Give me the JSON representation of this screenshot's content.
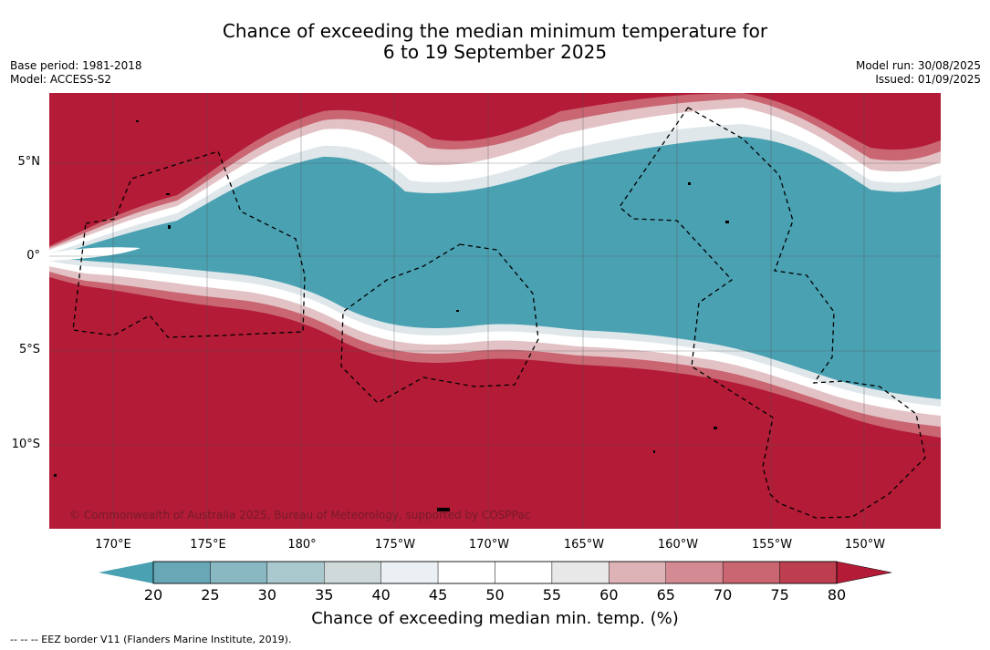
{
  "title": {
    "line1": "Chance of exceeding the median minimum temperature for",
    "line2": "6 to 19 September 2025"
  },
  "meta_left": {
    "base_period": "Base period: 1981-2018",
    "model": "Model: ACCESS-S2"
  },
  "meta_right": {
    "model_run": "Model run: 30/08/2025",
    "issued": "Issued: 01/09/2025"
  },
  "map": {
    "copyright": "© Commonwealth of Australia 2025, Bureau of Meteorology, supported by COSPPac",
    "lat_labels": [
      "5°N",
      "0°",
      "5°S",
      "10°S"
    ],
    "lon_labels": [
      "170°E",
      "175°E",
      "180°",
      "175°W",
      "170°W",
      "165°W",
      "160°W",
      "155°W",
      "150°W"
    ],
    "colors": {
      "below": "#4aa1b2",
      "above": "#b31b37"
    }
  },
  "colorbar": {
    "ticks": [
      "20",
      "25",
      "30",
      "35",
      "40",
      "45",
      "50",
      "55",
      "60",
      "65",
      "70",
      "75",
      "80"
    ],
    "colors": [
      "#68a7b6",
      "#89b8c3",
      "#aac9ce",
      "#cfd9d9",
      "#eaf0f3",
      "#ffffff",
      "#ffffff",
      "#e8e8e8",
      "#ddb3b8",
      "#d38a93",
      "#c96672",
      "#bc3e4f"
    ],
    "under_color": "#4aa1b2",
    "over_color": "#b31b37",
    "label": "Chance of exceeding median min. temp. (%)"
  },
  "footer": "--  --  -- EEZ border V11 (Flanders Marine Institute, 2019)."
}
